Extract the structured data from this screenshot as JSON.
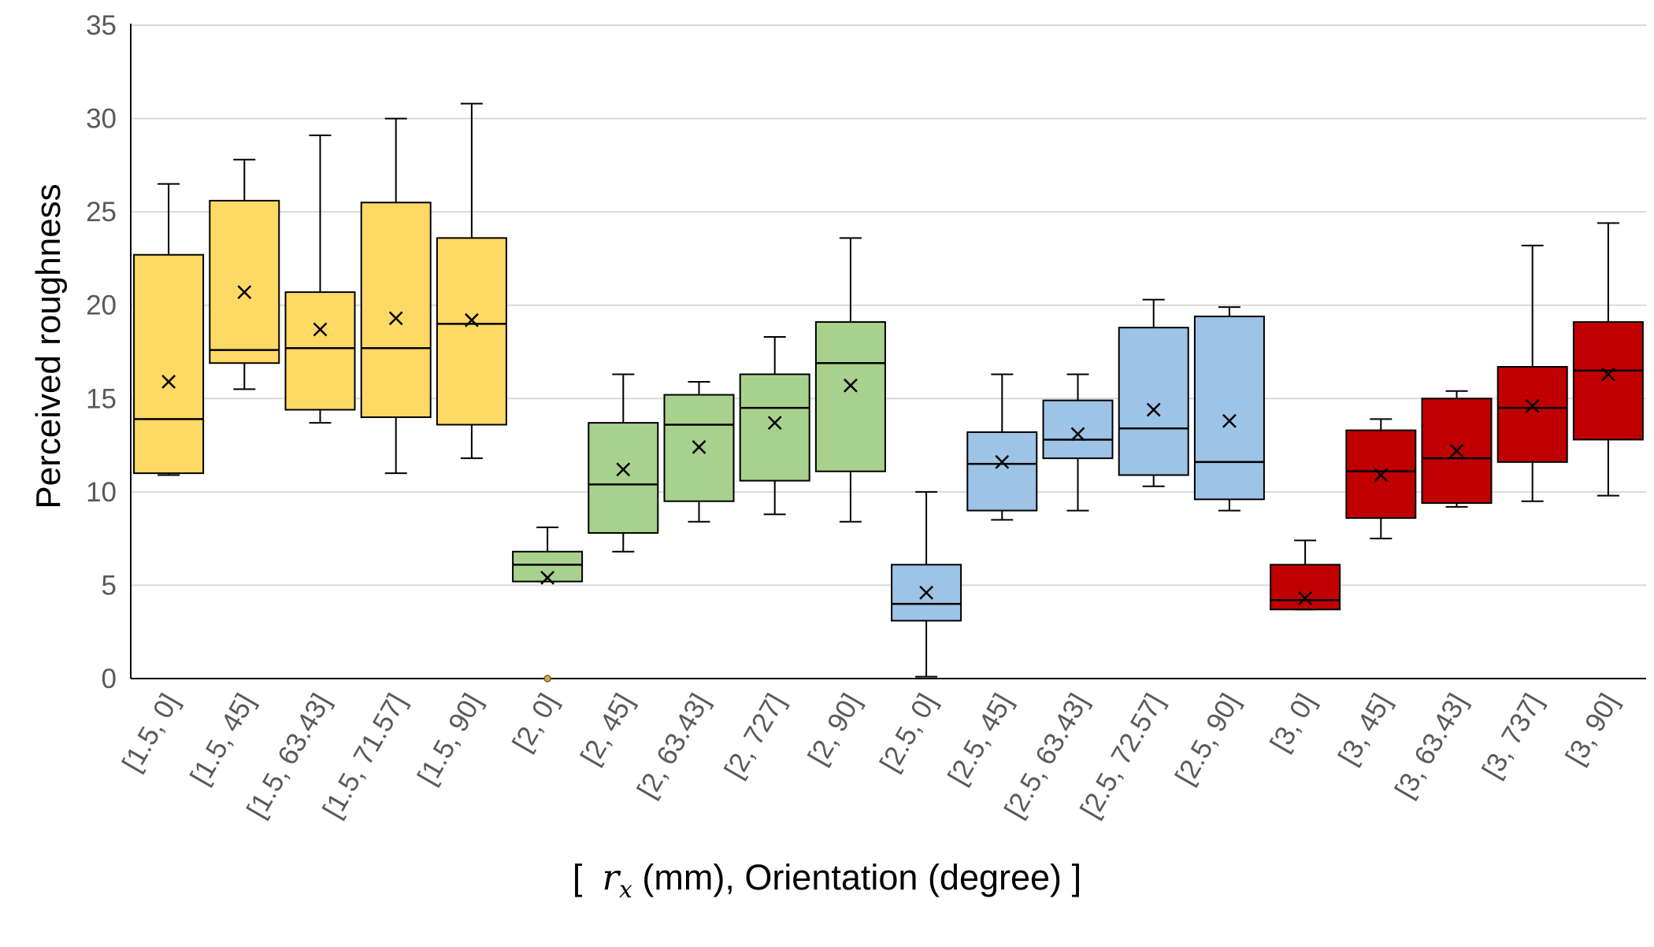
{
  "chart_data": {
    "type": "box",
    "ylabel": "Perceived roughness",
    "xlabel": {
      "open": "[",
      "symbol": "r",
      "subscript": "x",
      "rest": " (mm), Orientation (degree)",
      "close": "]"
    },
    "ylim": [
      0,
      35
    ],
    "yticks": [
      0,
      5,
      10,
      15,
      20,
      25,
      30,
      35
    ],
    "grid": "horizontal",
    "colors": {
      "1.5": "#FFD966",
      "2": "#A9D18E",
      "2.5": "#9DC3E6",
      "3": "#C00000"
    },
    "categories": [
      "[1.5, 0]",
      "[1.5, 45]",
      "[1.5, 63.43]",
      "[1.5, 71.57]",
      "[1.5, 90]",
      "[2, 0]",
      "[2, 45]",
      "[2, 63.43]",
      "[2, 727]",
      "[2, 90]",
      "[2.5, 0]",
      "[2.5, 45]",
      "[2.5, 63.43]",
      "[2.5, 72.57]",
      "[2.5, 90]",
      "[3, 0]",
      "[3, 45]",
      "[3, 63.43]",
      "[3, 737]",
      "[3, 90]"
    ],
    "boxes": [
      {
        "group": "1.5",
        "min": 10.9,
        "q1": 11.0,
        "median": 13.9,
        "q3": 22.7,
        "max": 26.5,
        "mean": 15.9
      },
      {
        "group": "1.5",
        "min": 15.5,
        "q1": 16.9,
        "median": 17.6,
        "q3": 25.6,
        "max": 27.8,
        "mean": 20.7
      },
      {
        "group": "1.5",
        "min": 13.7,
        "q1": 14.4,
        "median": 17.7,
        "q3": 20.7,
        "max": 29.1,
        "mean": 18.7
      },
      {
        "group": "1.5",
        "min": 11.0,
        "q1": 14.0,
        "median": 17.7,
        "q3": 25.5,
        "max": 30.0,
        "mean": 19.3
      },
      {
        "group": "1.5",
        "min": 11.8,
        "q1": 13.6,
        "median": 19.0,
        "q3": 23.6,
        "max": 30.8,
        "mean": 19.2
      },
      {
        "group": "2",
        "min": 5.2,
        "q1": 5.2,
        "median": 6.1,
        "q3": 6.8,
        "max": 8.1,
        "mean": 5.4,
        "outliers": [
          0
        ]
      },
      {
        "group": "2",
        "min": 6.8,
        "q1": 7.8,
        "median": 10.4,
        "q3": 13.7,
        "max": 16.3,
        "mean": 11.2
      },
      {
        "group": "2",
        "min": 8.4,
        "q1": 9.5,
        "median": 13.6,
        "q3": 15.2,
        "max": 15.9,
        "mean": 12.4
      },
      {
        "group": "2",
        "min": 8.8,
        "q1": 10.6,
        "median": 14.5,
        "q3": 16.3,
        "max": 18.3,
        "mean": 13.7
      },
      {
        "group": "2",
        "min": 8.4,
        "q1": 11.1,
        "median": 16.9,
        "q3": 19.1,
        "max": 23.6,
        "mean": 15.7
      },
      {
        "group": "2.5",
        "min": 0.1,
        "q1": 3.1,
        "median": 4.0,
        "q3": 6.1,
        "max": 10.0,
        "mean": 4.6
      },
      {
        "group": "2.5",
        "min": 8.5,
        "q1": 9.0,
        "median": 11.5,
        "q3": 13.2,
        "max": 16.3,
        "mean": 11.6
      },
      {
        "group": "2.5",
        "min": 9.0,
        "q1": 11.8,
        "median": 12.8,
        "q3": 14.9,
        "max": 16.3,
        "mean": 13.1
      },
      {
        "group": "2.5",
        "min": 10.3,
        "q1": 10.9,
        "median": 13.4,
        "q3": 18.8,
        "max": 20.3,
        "mean": 14.4
      },
      {
        "group": "2.5",
        "min": 9.0,
        "q1": 9.6,
        "median": 11.6,
        "q3": 19.4,
        "max": 19.9,
        "mean": 13.8
      },
      {
        "group": "3",
        "min": 3.7,
        "q1": 3.7,
        "median": 4.2,
        "q3": 6.1,
        "max": 7.4,
        "mean": 4.3
      },
      {
        "group": "3",
        "min": 7.5,
        "q1": 8.6,
        "median": 11.1,
        "q3": 13.3,
        "max": 13.9,
        "mean": 10.9
      },
      {
        "group": "3",
        "min": 9.2,
        "q1": 9.4,
        "median": 11.8,
        "q3": 15.0,
        "max": 15.4,
        "mean": 12.2
      },
      {
        "group": "3",
        "min": 9.5,
        "q1": 11.6,
        "median": 14.5,
        "q3": 16.7,
        "max": 23.2,
        "mean": 14.6
      },
      {
        "group": "3",
        "min": 9.8,
        "q1": 12.8,
        "median": 16.5,
        "q3": 19.1,
        "max": 24.4,
        "mean": 16.3
      }
    ]
  }
}
